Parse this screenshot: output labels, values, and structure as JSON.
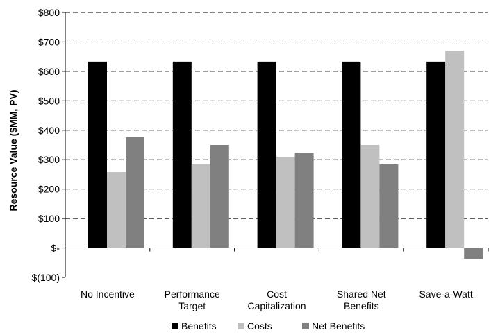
{
  "chart_data": {
    "type": "bar",
    "ylabel": "Resource Value ($MM, PV)",
    "xlabel": "",
    "ylim": [
      -100,
      800
    ],
    "yticks": [
      {
        "value": 800,
        "label": "$800"
      },
      {
        "value": 700,
        "label": "$700"
      },
      {
        "value": 600,
        "label": "$600"
      },
      {
        "value": 500,
        "label": "$500"
      },
      {
        "value": 400,
        "label": "$400"
      },
      {
        "value": 300,
        "label": "$300"
      },
      {
        "value": 200,
        "label": "$200"
      },
      {
        "value": 100,
        "label": "$100"
      },
      {
        "value": 0,
        "label": "$-"
      },
      {
        "value": -100,
        "label": "$(100)"
      }
    ],
    "categories": [
      {
        "name": "No Incentive",
        "lines": [
          "No Incentive"
        ]
      },
      {
        "name": "Performance Target",
        "lines": [
          "Performance",
          "Target"
        ]
      },
      {
        "name": "Cost Capitalization",
        "lines": [
          "Cost",
          "Capitalization"
        ]
      },
      {
        "name": "Shared Net Benefits",
        "lines": [
          "Shared Net",
          "Benefits"
        ]
      },
      {
        "name": "Save-a-Watt",
        "lines": [
          "Save-a-Watt"
        ]
      }
    ],
    "series": [
      {
        "name": "Benefits",
        "color": "#000000",
        "values": [
          633,
          633,
          633,
          633,
          633
        ]
      },
      {
        "name": "Costs",
        "color": "#c0c0c0",
        "values": [
          258,
          284,
          310,
          350,
          670
        ]
      },
      {
        "name": "Net Benefits",
        "color": "#808080",
        "values": [
          376,
          350,
          324,
          284,
          -37
        ]
      }
    ],
    "grid": true,
    "legend_position": "bottom"
  }
}
